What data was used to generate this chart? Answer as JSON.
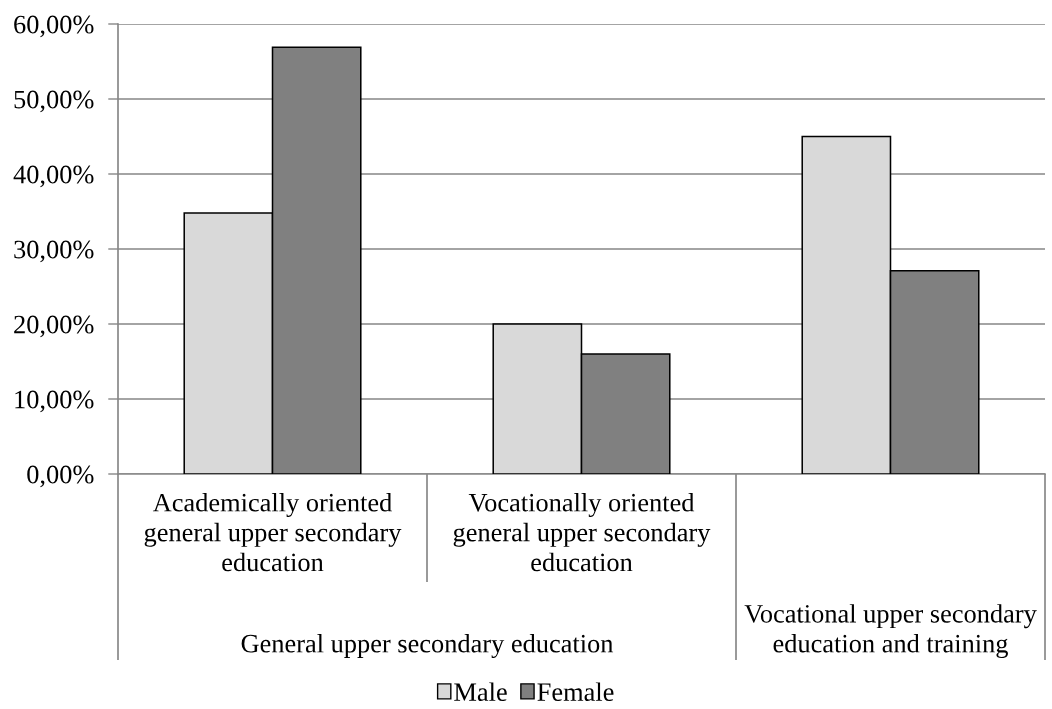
{
  "chart_data": {
    "type": "bar",
    "categories": [
      "Academically oriented general upper secondary education",
      "Vocationally oriented general upper secondary education",
      null
    ],
    "series": [
      {
        "name": "Male",
        "color": "#d9d9d9",
        "values": [
          34.8,
          20,
          45
        ]
      },
      {
        "name": "Female",
        "color": "#808080",
        "values": [
          56.9,
          16,
          27.1
        ]
      }
    ],
    "ylim": [
      0,
      60
    ],
    "yticks": [
      {
        "value": 0,
        "label": "0,00%"
      },
      {
        "value": 10,
        "label": "10,00%"
      },
      {
        "value": 20,
        "label": "20,00%"
      },
      {
        "value": 30,
        "label": "30,00%"
      },
      {
        "value": 40,
        "label": "40,00%"
      },
      {
        "value": 50,
        "label": "50,00%"
      },
      {
        "value": 60,
        "label": "60,00%"
      }
    ],
    "grid": "y",
    "legend": "bottom",
    "annotations": [
      "General upper secondary education",
      "Vocational upper secondary education and training"
    ]
  }
}
